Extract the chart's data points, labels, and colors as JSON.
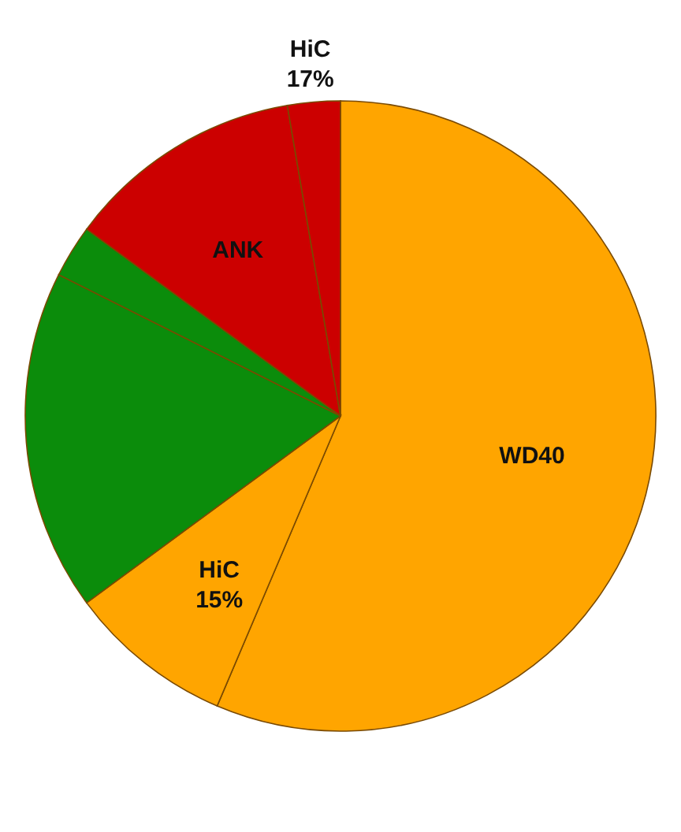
{
  "chart_data": {
    "type": "pie",
    "categories": [
      "WD40",
      "HiC\n15%",
      null,
      null,
      "ANK",
      "HiC\n17%"
    ],
    "values": [
      56.4,
      8.5,
      17.5,
      2.7,
      12.2,
      2.7
    ],
    "colors": [
      "#ffa500",
      "#ffa500",
      "#0b8c0b",
      "#0b8c0b",
      "#cc0000",
      "#cc0000"
    ]
  }
}
